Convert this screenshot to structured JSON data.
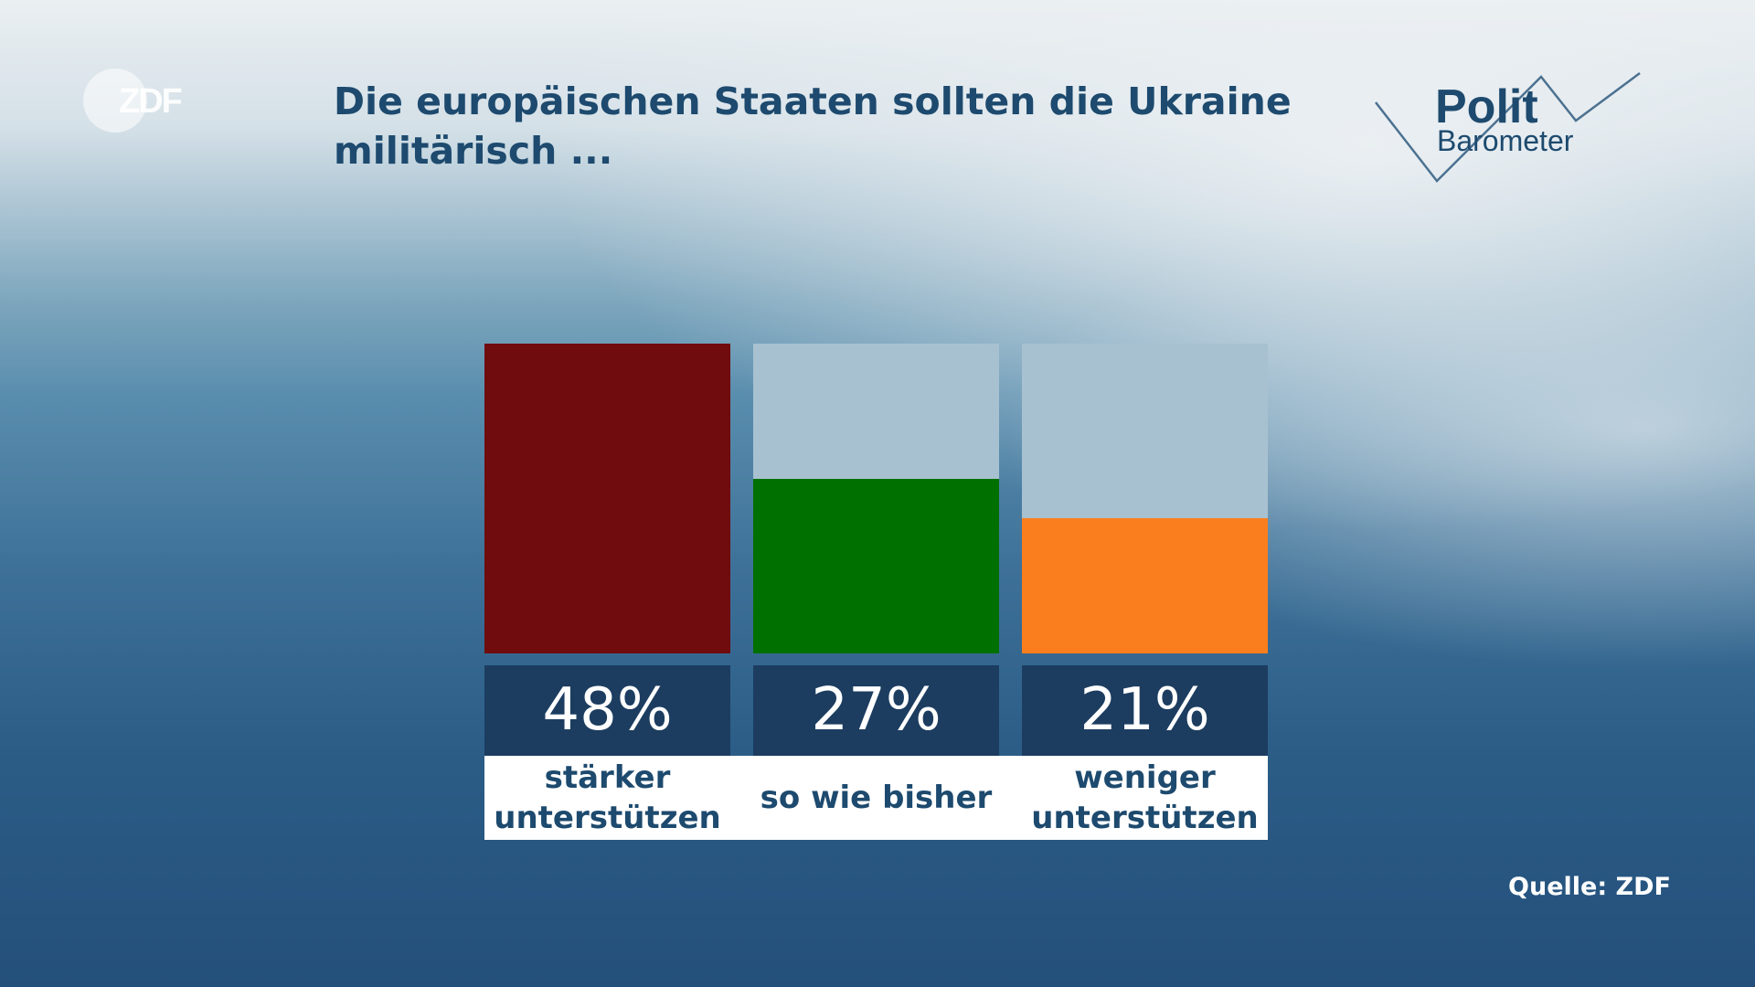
{
  "header": {
    "title_line1": "Die europäischen Staaten sollten die Ukraine",
    "title_line2": "militärisch ..."
  },
  "logos": {
    "broadcaster": "ZDF",
    "program_line1": "Polit",
    "program_line2": "Barometer"
  },
  "footer": {
    "source": "Quelle: ZDF"
  },
  "chart_data": {
    "type": "bar",
    "title": "Die europäischen Staaten sollten die Ukraine militärisch ...",
    "categories": [
      "stärker\nunterstützen",
      "so wie bisher",
      "weniger\nunterstützen"
    ],
    "values": [
      48,
      27,
      21
    ],
    "value_labels": [
      "48%",
      "27%",
      "21%"
    ],
    "colors": [
      "#700b0e",
      "#007000",
      "#fb7e1e"
    ],
    "track_color": "#a8c1d0",
    "ylim": [
      0,
      48
    ],
    "grid": false
  }
}
